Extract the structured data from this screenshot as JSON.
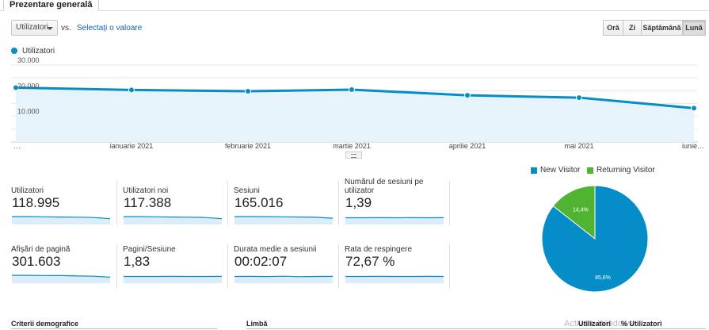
{
  "tab": {
    "label": "Prezentare generală"
  },
  "toolbar": {
    "metric_select": "Utilizatori",
    "vs": "vs.",
    "choose_value": "Selectați o valoare",
    "periods": [
      "Oră",
      "Zi",
      "Săptămână",
      "Lună"
    ],
    "active_period": "Lună"
  },
  "chart_data": [
    {
      "type": "area",
      "series": [
        {
          "name": "Utilizatori",
          "values": [
            21200,
            20300,
            19800,
            20400,
            18200,
            17300,
            13200
          ]
        }
      ],
      "categories": [
        "…",
        "ianuarie 2021",
        "februarie 2021",
        "martie 2021",
        "aprilie 2021",
        "mai 2021",
        "iunie…"
      ],
      "y_ticks": [
        "30.000",
        "20.000",
        "10.000"
      ],
      "ylim": [
        0,
        30000
      ],
      "color": "#058dc7",
      "fill": "#e6f3fb",
      "grid": true,
      "legend": "top-left"
    },
    {
      "type": "pie",
      "labels": [
        "New Visitor",
        "Returning Visitor"
      ],
      "values": [
        85.6,
        14.4
      ],
      "data_labels": [
        "85,6%",
        "14,4%"
      ],
      "colors": [
        "#058dc7",
        "#50b432"
      ],
      "legend": "top"
    }
  ],
  "metrics": [
    {
      "label": "Utilizatori",
      "value": "118.995",
      "spark": [
        6,
        6,
        5.8,
        5.6,
        5.5,
        5.2,
        4.2
      ]
    },
    {
      "label": "Utilizatori noi",
      "value": "117.388",
      "spark": [
        6,
        6,
        5.8,
        5.6,
        5.5,
        5.2,
        4.2
      ]
    },
    {
      "label": "Sesiuni",
      "value": "165.016",
      "spark": [
        6,
        6,
        5.9,
        5.8,
        5.6,
        5.4,
        4.6
      ]
    },
    {
      "label": "Numărul de sesiuni pe utilizator",
      "value": "1,39",
      "spark": [
        5,
        5,
        5.05,
        5,
        5.05,
        5,
        5.1
      ]
    },
    {
      "label": "Afișări de pagină",
      "value": "301.603",
      "spark": [
        6,
        5.9,
        5.8,
        5.7,
        5.4,
        5.2,
        4.4
      ]
    },
    {
      "label": "Pagini/Sesiune",
      "value": "1,83",
      "spark": [
        5,
        5,
        5,
        5.05,
        5,
        5,
        5.05
      ]
    },
    {
      "label": "Durata medie a sesiunii",
      "value": "00:02:07",
      "spark": [
        5,
        5.1,
        4.9,
        5.2,
        4.8,
        5,
        5.1
      ]
    },
    {
      "label": "Rata de respingere",
      "value": "72,67 %",
      "spark": [
        5,
        5,
        5.05,
        5,
        5,
        5.05,
        5
      ]
    }
  ],
  "bottom": {
    "demographics": "Criterii demografice",
    "language": "Limbă",
    "col_users": "Utilizatori",
    "col_users_pct": "% Utilizatori"
  },
  "watermark": "Activare Windows"
}
